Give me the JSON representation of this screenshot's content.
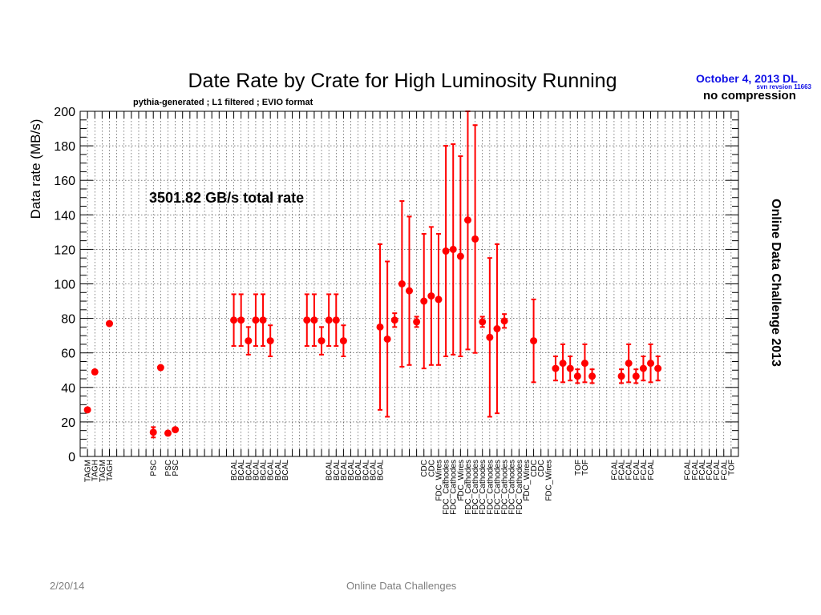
{
  "chart_data": {
    "type": "scatter",
    "title": "Date Rate by Crate for High Luminosity Running",
    "subtitle": "pythia-generated ; L1 filtered ; EVIO format",
    "date_stamp": "October  4, 2013 DL",
    "svn_note": "svn revsion 11663",
    "compression_note": "no compression",
    "side_label": "Online Data Challenge 2013",
    "annotation": "3501.82 GB/s total rate",
    "ylabel": "Data rate (MB/s)",
    "xlabel": "",
    "ylim": [
      0,
      200
    ],
    "y_ticks": [
      "0",
      "20",
      "40",
      "60",
      "80",
      "100",
      "120",
      "140",
      "160",
      "180",
      "200"
    ],
    "grid": true,
    "marker_color": "#ff0000",
    "categories": [
      "TAGM",
      "TAGH",
      "TAGM",
      "TAGH",
      "",
      "",
      "",
      "",
      "",
      "PSC",
      "",
      "PSC",
      "PSC",
      "",
      "",
      "",
      "",
      "",
      "",
      "",
      "BCAL",
      "BCAL",
      "BCAL",
      "BCAL",
      "BCAL",
      "BCAL",
      "BCAL",
      "BCAL",
      "",
      "",
      "",
      "",
      "",
      "BCAL",
      "BCAL",
      "BCAL",
      "BCAL",
      "BCAL",
      "BCAL",
      "BCAL",
      "BCAL",
      "",
      "",
      "",
      "",
      "",
      "CDC",
      "CDC",
      "FDC_Wires",
      "FDC_Cathodes",
      "FDC_Cathodes",
      "FDC_Wires",
      "FDC_Cathodes",
      "FDC_Cathodes",
      "FDC_Cathodes",
      "FDC_Cathodes",
      "FDC_Cathodes",
      "FDC_Cathodes",
      "FDC_Cathodes",
      "FDC_Cathodes",
      "FDC_Wires",
      "CDC",
      "CDC",
      "FDC_Wires",
      "",
      "",
      "",
      "TOF",
      "TOF",
      "",
      "",
      "",
      "FCAL",
      "FCAL",
      "FCAL",
      "FCAL",
      "FCAL",
      "FCAL",
      "",
      "",
      "",
      "",
      "FCAL",
      "FCAL",
      "FCAL",
      "FCAL",
      "FCAL",
      "FCAL",
      "TOF"
    ],
    "points": [
      {
        "x": 0,
        "y": 27,
        "err": 0
      },
      {
        "x": 1,
        "y": 49,
        "err": 0
      },
      {
        "x": 3,
        "y": 77,
        "err": 0
      },
      {
        "x": 9,
        "y": 14,
        "err": 3
      },
      {
        "x": 10,
        "y": 51.5,
        "err": 0
      },
      {
        "x": 11,
        "y": 13.5,
        "err": 0
      },
      {
        "x": 12,
        "y": 15.5,
        "err": 0
      },
      {
        "x": 20,
        "y": 79,
        "err": 15
      },
      {
        "x": 21,
        "y": 79,
        "err": 15
      },
      {
        "x": 22,
        "y": 67,
        "err": 8
      },
      {
        "x": 23,
        "y": 79,
        "err": 15
      },
      {
        "x": 24,
        "y": 79,
        "err": 15
      },
      {
        "x": 25,
        "y": 67,
        "err": 9
      },
      {
        "x": 30,
        "y": 79,
        "err": 15
      },
      {
        "x": 31,
        "y": 79,
        "err": 15
      },
      {
        "x": 32,
        "y": 67,
        "err": 8
      },
      {
        "x": 33,
        "y": 79,
        "err": 15
      },
      {
        "x": 34,
        "y": 79,
        "err": 15
      },
      {
        "x": 35,
        "y": 67,
        "err": 9
      },
      {
        "x": 40,
        "y": 75,
        "err": 48
      },
      {
        "x": 41,
        "y": 68,
        "err": 45
      },
      {
        "x": 42,
        "y": 79,
        "err": 4
      },
      {
        "x": 43,
        "y": 100,
        "err": 48
      },
      {
        "x": 44,
        "y": 96,
        "err": 43
      },
      {
        "x": 45,
        "y": 78,
        "err": 3
      },
      {
        "x": 46,
        "y": 90,
        "err": 39
      },
      {
        "x": 47,
        "y": 93,
        "err": 40
      },
      {
        "x": 48,
        "y": 91,
        "err": 38
      },
      {
        "x": 49,
        "y": 119,
        "err": 61
      },
      {
        "x": 50,
        "y": 120,
        "err": 61
      },
      {
        "x": 51,
        "y": 116,
        "err": 58
      },
      {
        "x": 52,
        "y": 137,
        "err": 75
      },
      {
        "x": 53,
        "y": 126,
        "err": 66
      },
      {
        "x": 54,
        "y": 78,
        "err": 3
      },
      {
        "x": 55,
        "y": 69,
        "err": 46
      },
      {
        "x": 56,
        "y": 74,
        "err": 49
      },
      {
        "x": 57,
        "y": 78.5,
        "err": 4
      },
      {
        "x": 61,
        "y": 67,
        "err": 24
      },
      {
        "x": 64,
        "y": 51,
        "err": 7
      },
      {
        "x": 65,
        "y": 54,
        "err": 11
      },
      {
        "x": 66,
        "y": 51,
        "err": 7
      },
      {
        "x": 67,
        "y": 46.5,
        "err": 4
      },
      {
        "x": 68,
        "y": 54,
        "err": 11
      },
      {
        "x": 69,
        "y": 46.5,
        "err": 4
      },
      {
        "x": 73,
        "y": 46.5,
        "err": 4
      },
      {
        "x": 74,
        "y": 54,
        "err": 11
      },
      {
        "x": 75,
        "y": 46.5,
        "err": 4
      },
      {
        "x": 76,
        "y": 51,
        "err": 7
      },
      {
        "x": 77,
        "y": 54,
        "err": 11
      },
      {
        "x": 78,
        "y": 51,
        "err": 7
      }
    ]
  },
  "footer": {
    "date": "2/20/14",
    "title": "Online Data Challenges"
  }
}
